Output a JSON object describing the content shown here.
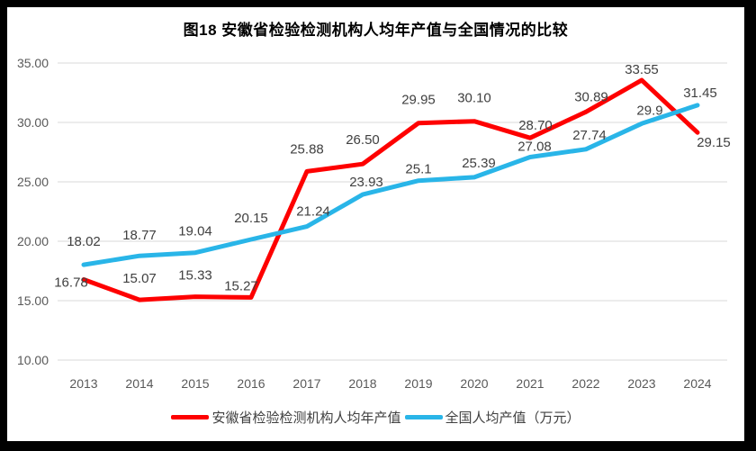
{
  "frame": {
    "background": "#000000",
    "card_background": "#ffffff"
  },
  "chart_data": {
    "type": "line",
    "title": "图18 安徽省检验检测机构人均年产值与全国情况的比较",
    "categories": [
      "2013",
      "2014",
      "2015",
      "2016",
      "2017",
      "2018",
      "2019",
      "2020",
      "2021",
      "2022",
      "2023",
      "2024"
    ],
    "series": [
      {
        "name": "安徽省检验检测机构人均年产值",
        "color": "#FE0000",
        "values": [
          16.78,
          15.07,
          15.33,
          15.27,
          25.88,
          26.5,
          29.95,
          30.1,
          28.7,
          30.89,
          33.55,
          29.15
        ],
        "labels": [
          "16.78",
          "15.07",
          "15.33",
          "15.27",
          "25.88",
          "26.50",
          "29.95",
          "30.10",
          "28.70",
          "30.89",
          "33.55",
          "29.15"
        ],
        "label_offsets": [
          [
            -14,
            8
          ],
          [
            0,
            -19
          ],
          [
            0,
            -19
          ],
          [
            -11,
            -8
          ],
          [
            0,
            -20
          ],
          [
            0,
            -22
          ],
          [
            0,
            -21
          ],
          [
            0,
            -21
          ],
          [
            6,
            -9
          ],
          [
            6,
            -12
          ],
          [
            0,
            -7
          ],
          [
            18,
            16
          ]
        ]
      },
      {
        "name": "全国人均产值（万元）",
        "color": "#29B5E8",
        "values": [
          18.02,
          18.77,
          19.04,
          20.15,
          21.24,
          23.93,
          25.1,
          25.39,
          27.08,
          27.74,
          29.9,
          31.45
        ],
        "labels": [
          "18.02",
          "18.77",
          "19.04",
          "20.15",
          "21.24",
          "23.93",
          "25.1",
          "25.39",
          "27.08",
          "27.74",
          "29.9",
          "31.45"
        ],
        "label_offsets": [
          [
            0,
            -21
          ],
          [
            0,
            -18
          ],
          [
            0,
            -19
          ],
          [
            0,
            -19
          ],
          [
            7,
            -12
          ],
          [
            4,
            -9
          ],
          [
            0,
            -8
          ],
          [
            5,
            -11
          ],
          [
            5,
            -7
          ],
          [
            4,
            -11
          ],
          [
            9,
            -10
          ],
          [
            3,
            -9
          ]
        ]
      }
    ],
    "xlabel": "",
    "ylabel": "",
    "ylim": [
      10,
      35
    ],
    "ytick_step": 5,
    "ytick_labels": [
      "10.00",
      "15.00",
      "20.00",
      "25.00",
      "30.00",
      "35.00"
    ],
    "grid": true,
    "legend_position": "bottom",
    "axis_color": "#595959",
    "grid_color": "#D9D9D9",
    "data_label_color": "#404040",
    "line_width": 5
  }
}
